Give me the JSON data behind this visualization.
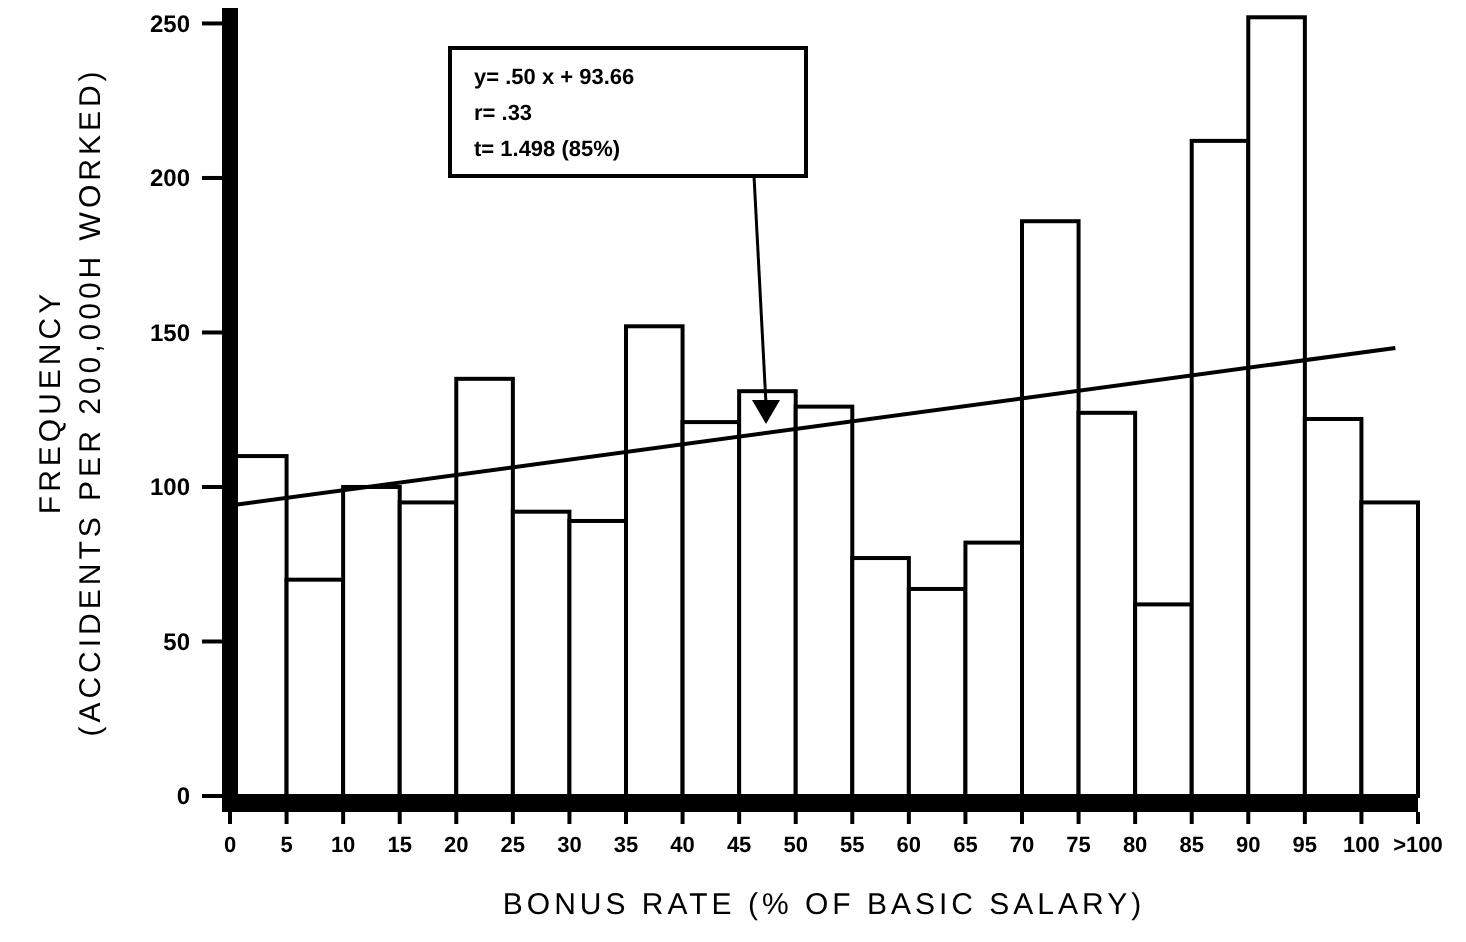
{
  "chart_data": {
    "type": "histogram",
    "xlabel": "BONUS RATE (% OF BASIC SALARY)",
    "ylabel": "FREQUENCY\n(ACCIDENTS PER 200,000H WORKED)",
    "bins": [
      0,
      5,
      10,
      15,
      20,
      25,
      30,
      35,
      40,
      45,
      50,
      55,
      60,
      65,
      70,
      75,
      80,
      85,
      90,
      95,
      100,
      105
    ],
    "xlim": [
      0,
      105
    ],
    "xticks": [
      0,
      5,
      10,
      15,
      20,
      25,
      30,
      35,
      40,
      45,
      50,
      55,
      60,
      65,
      70,
      75,
      80,
      85,
      90,
      95,
      100,
      {
        "value": 105,
        "label": ">100"
      }
    ],
    "ylim": [
      0,
      255
    ],
    "yticks": [
      0,
      50,
      100,
      150,
      200,
      250
    ],
    "series": [
      {
        "color": "#ffffff",
        "values": [
          110,
          70,
          100,
          95,
          135,
          92,
          89,
          152,
          121,
          131,
          126,
          77,
          67,
          82,
          186,
          124,
          62,
          212,
          252,
          122,
          95
        ]
      },
      {
        "type": "line",
        "color": "#000000",
        "x": [
          0,
          103
        ],
        "values": [
          94,
          145
        ]
      }
    ],
    "annotations": [
      "y= .50 x + 93.66\nr= .33\nt= 1.498 (85%)"
    ]
  }
}
